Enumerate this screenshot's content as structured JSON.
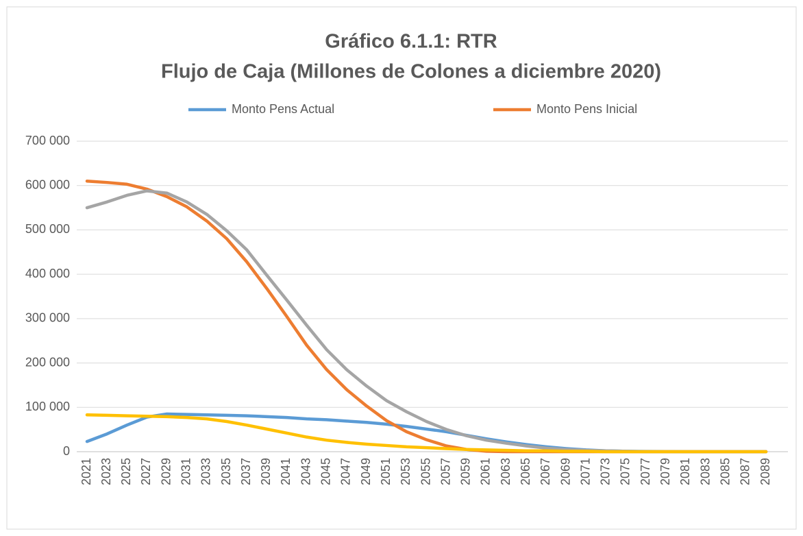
{
  "chart_data": {
    "type": "line",
    "title": "Gráfico 6.1.1: RTR",
    "subtitle": "Flujo de Caja (Millones de Colones a diciembre 2020)",
    "categories": [
      "2021",
      "2023",
      "2025",
      "2027",
      "2029",
      "2031",
      "2033",
      "2035",
      "2037",
      "2039",
      "2041",
      "2043",
      "2045",
      "2047",
      "2049",
      "2051",
      "2053",
      "2055",
      "2057",
      "2059",
      "2061",
      "2063",
      "2065",
      "2067",
      "2069",
      "2071",
      "2073",
      "2075",
      "2077",
      "2079",
      "2081",
      "2083",
      "2085",
      "2087",
      "2089"
    ],
    "series": [
      {
        "name": "Monto Pens Actual",
        "color": "#5b9bd5",
        "values": [
          23000,
          40000,
          60000,
          78000,
          85000,
          84000,
          83000,
          82000,
          81000,
          79000,
          77000,
          74000,
          72000,
          69000,
          66000,
          62000,
          57000,
          51000,
          45000,
          37000,
          29000,
          22000,
          16000,
          11000,
          7000,
          4000,
          2000,
          1000,
          500,
          300,
          0,
          0,
          0,
          0,
          0
        ]
      },
      {
        "name": "Monto Pens Inicial",
        "color": "#ed7d31",
        "values": [
          610000,
          607000,
          603000,
          592000,
          575000,
          552000,
          520000,
          480000,
          428000,
          368000,
          305000,
          240000,
          185000,
          140000,
          103000,
          70000,
          45000,
          27000,
          13000,
          5000,
          1000,
          0,
          0,
          0,
          0,
          0,
          0,
          0,
          0,
          0,
          0,
          0,
          0,
          0,
          0
        ]
      },
      {
        "color": "#a5a5a5",
        "values": [
          550000,
          563000,
          578000,
          588000,
          583000,
          563000,
          535000,
          498000,
          455000,
          398000,
          342000,
          285000,
          230000,
          185000,
          148000,
          115000,
          90000,
          68000,
          50000,
          36000,
          26000,
          19000,
          13000,
          8000,
          5000,
          3000,
          2000,
          1000,
          0,
          0,
          0,
          0,
          0,
          0,
          0
        ]
      },
      {
        "color": "#ffc000",
        "values": [
          83000,
          82000,
          81000,
          80000,
          79000,
          77000,
          74000,
          68000,
          60000,
          51000,
          42000,
          33000,
          26000,
          21000,
          17000,
          14000,
          11000,
          9000,
          7000,
          5000,
          4000,
          3000,
          2000,
          2000,
          1000,
          1000,
          0,
          0,
          0,
          0,
          0,
          0,
          0,
          0,
          0
        ]
      }
    ],
    "ylim": [
      0,
      700000
    ],
    "yticks": [
      0,
      {
        "value": 100000,
        "label": "100 000"
      },
      {
        "value": 200000,
        "label": "200 000"
      },
      {
        "value": 300000,
        "label": "300 000"
      },
      {
        "value": 400000,
        "label": "400 000"
      },
      {
        "value": 500000,
        "label": "500 000"
      },
      {
        "value": 600000,
        "label": "600 000"
      },
      {
        "value": 700000,
        "label": "700 000"
      }
    ],
    "grid": true,
    "legend": "top"
  }
}
